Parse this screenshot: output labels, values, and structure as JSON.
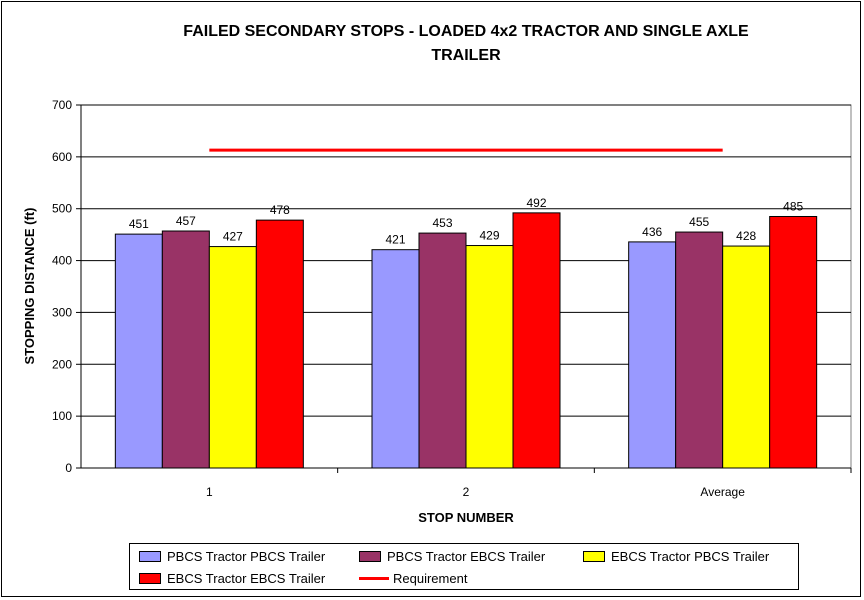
{
  "chart_data": {
    "type": "bar",
    "title": "FAILED SECONDARY STOPS - LOADED 4x2 TRACTOR AND SINGLE AXLE\nTRAILER",
    "xlabel": "STOP NUMBER",
    "ylabel": "STOPPING DISTANCE (ft)",
    "ylim": [
      0,
      700
    ],
    "yticks": [
      "0",
      "100",
      "200",
      "300",
      "400",
      "500",
      "600",
      "700"
    ],
    "grid": true,
    "categories": [
      "1",
      "2",
      "Average"
    ],
    "series": [
      {
        "name": "PBCS Tractor PBCS Trailer",
        "values": [
          451,
          421,
          436
        ],
        "color": "#9999ff"
      },
      {
        "name": "PBCS Tractor EBCS Trailer",
        "values": [
          457,
          453,
          455
        ],
        "color": "#993366"
      },
      {
        "name": "EBCS Tractor PBCS Trailer",
        "values": [
          427,
          429,
          428
        ],
        "color": "#ffff00"
      },
      {
        "name": "EBCS Tractor EBCS Trailer",
        "values": [
          478,
          492,
          485
        ],
        "color": "#ff0000"
      }
    ],
    "reference_line": {
      "name": "Requirement",
      "value": 613,
      "color": "#ff0000"
    },
    "legend_placement": "bottom"
  }
}
